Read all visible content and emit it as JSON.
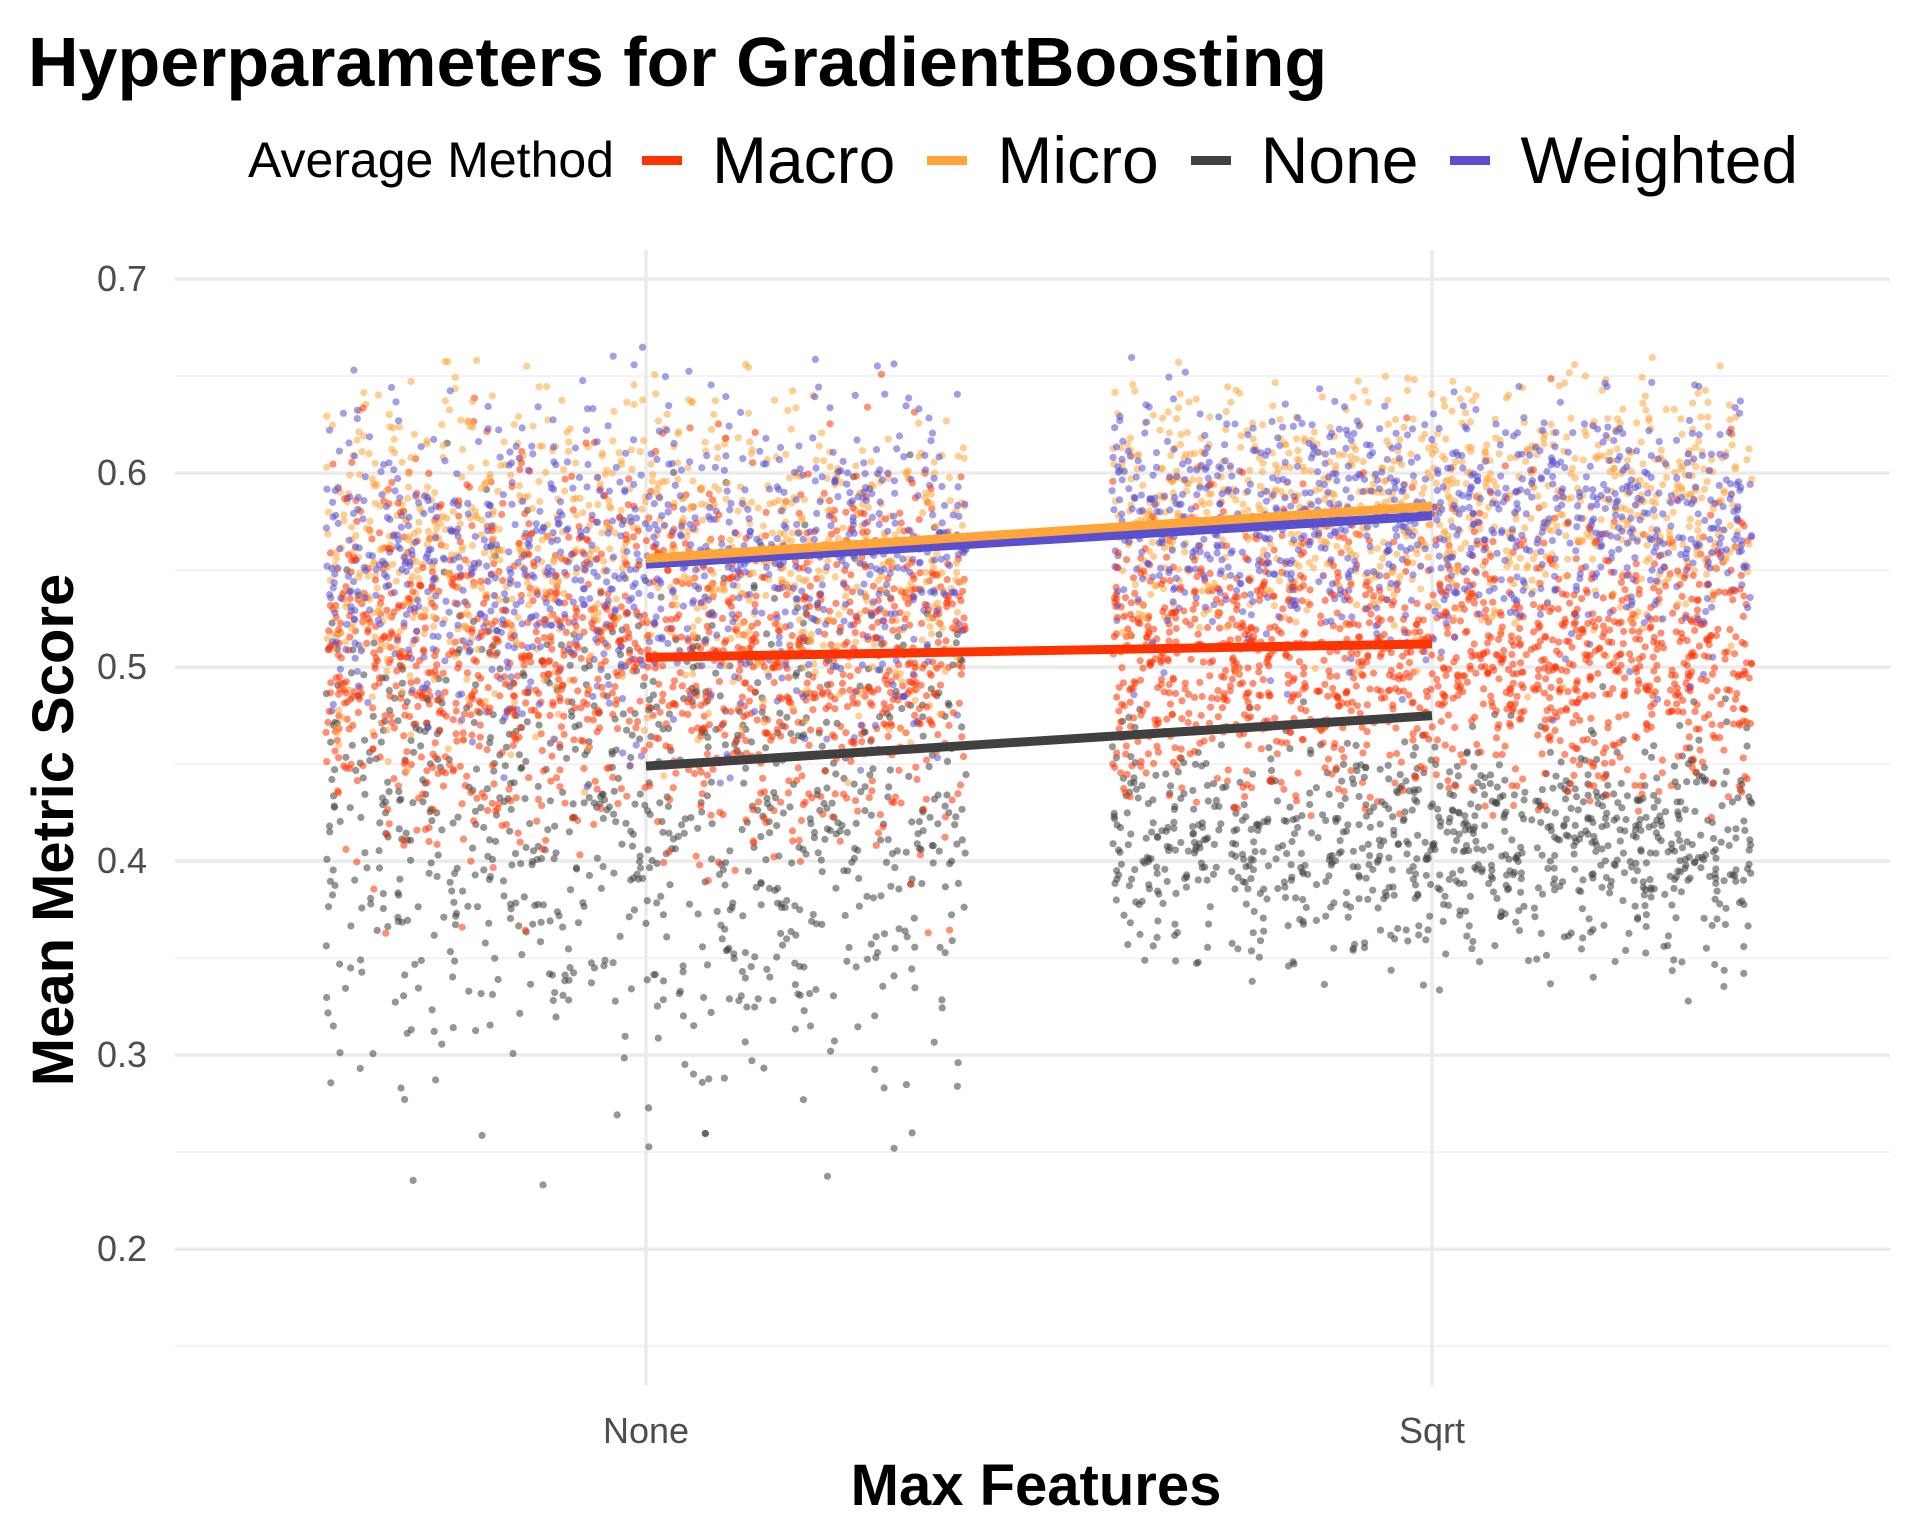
{
  "chart_data": {
    "type": "scatter",
    "title": "Hyperparameters for GradientBoosting",
    "xlabel": "Max Features",
    "ylabel": "Mean Metric Score",
    "categories": [
      "None",
      "Sqrt"
    ],
    "ylim": [
      0.13,
      0.715
    ],
    "yticks": [
      "0.2",
      "0.3",
      "0.4",
      "0.5",
      "0.6",
      "0.7"
    ],
    "grid": true,
    "legend": {
      "title": "Average Method",
      "position": "top"
    },
    "series": [
      {
        "name": "Macro",
        "color": "#ff3300",
        "trend": [
          0.505,
          0.512
        ],
        "scatter": [
          {
            "center": 0.505,
            "spread": 0.048,
            "min": 0.36,
            "max": 0.66
          },
          {
            "center": 0.505,
            "spread": 0.038,
            "min": 0.42,
            "max": 0.675
          }
        ]
      },
      {
        "name": "Micro",
        "color": "#ffa53a",
        "trend": [
          0.556,
          0.583
        ],
        "scatter": [
          {
            "center": 0.56,
            "spread": 0.042,
            "min": 0.43,
            "max": 0.66
          },
          {
            "center": 0.583,
            "spread": 0.032,
            "min": 0.47,
            "max": 0.66
          }
        ]
      },
      {
        "name": "None",
        "color": "#404040",
        "trend": [
          0.449,
          0.475
        ],
        "scatter": [
          {
            "center": 0.42,
            "spread": 0.065,
            "min": 0.15,
            "max": 0.64
          },
          {
            "center": 0.41,
            "spread": 0.03,
            "min": 0.3,
            "max": 0.55
          }
        ]
      },
      {
        "name": "Weighted",
        "color": "#5a4fcf",
        "trend": [
          0.553,
          0.578
        ],
        "scatter": [
          {
            "center": 0.555,
            "spread": 0.042,
            "min": 0.43,
            "max": 0.665
          },
          {
            "center": 0.575,
            "spread": 0.032,
            "min": 0.47,
            "max": 0.665
          }
        ]
      }
    ]
  }
}
